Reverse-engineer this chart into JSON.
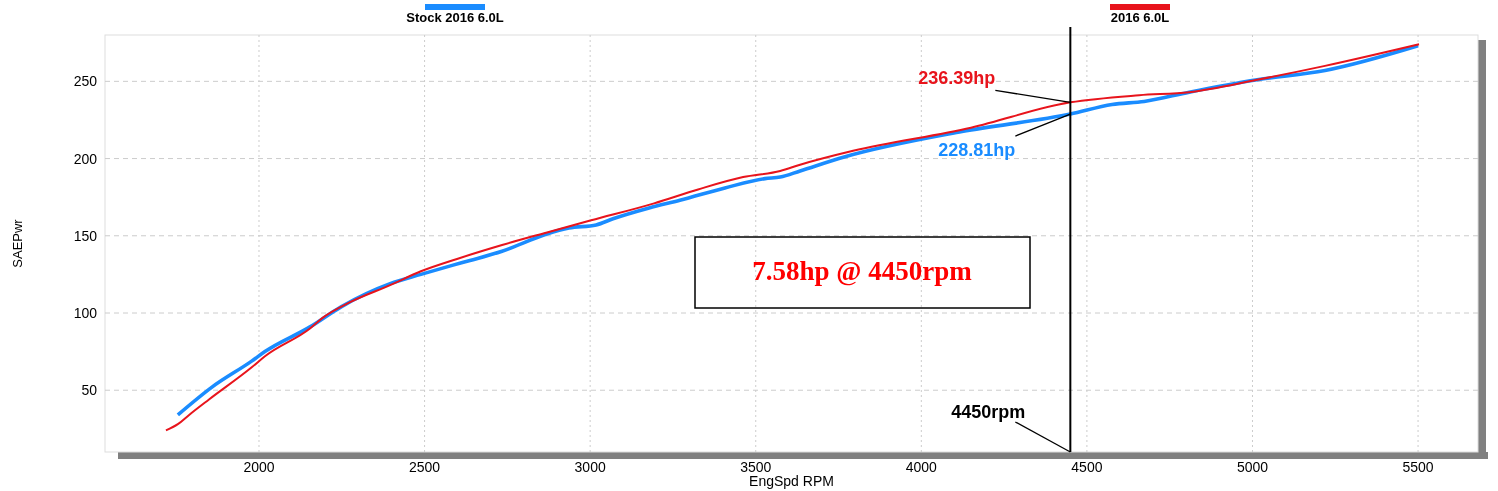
{
  "chart_data": {
    "type": "line",
    "xlabel": "EngSpd RPM",
    "ylabel": "SAEPwr",
    "xlim": [
      1535,
      5681
    ],
    "ylim": [
      10,
      280
    ],
    "xticks": [
      2000,
      2500,
      3000,
      3500,
      4000,
      4500,
      5000,
      5500
    ],
    "yticks": [
      50,
      100,
      150,
      200,
      250
    ],
    "grid": true,
    "legend": "top",
    "marker": "none",
    "line_style": "solid",
    "series": [
      {
        "name": "Stock 2016 6.0L",
        "color": "#1a8cff",
        "x": [
          1755,
          1858,
          1979,
          2018,
          2154,
          2248,
          2396,
          2489,
          2586,
          2637,
          2734,
          2867,
          2936,
          3018,
          3069,
          3178,
          3271,
          3407,
          3528,
          3574,
          3634,
          3767,
          4123,
          4450,
          4576,
          4673,
          4809,
          5014,
          5219,
          5500
        ],
        "values": [
          34,
          52,
          69,
          75,
          91,
          104,
          119,
          125,
          131,
          134,
          140,
          151,
          155,
          157,
          161,
          168,
          173,
          181,
          187,
          188,
          192,
          201,
          217.5,
          228.81,
          235,
          237,
          243,
          251,
          257,
          273
        ]
      },
      {
        "name": "2016 6.0L",
        "color": "#e8141c",
        "x": [
          1719,
          1755,
          1789,
          1849,
          1979,
          2018,
          2154,
          2193,
          2275,
          2396,
          2489,
          2598,
          2734,
          2867,
          3003,
          3193,
          3326,
          3462,
          3574,
          3634,
          3794,
          4150,
          4450,
          4658,
          4809,
          5014,
          5219,
          5503
        ],
        "values": [
          24,
          28,
          34,
          44,
          65,
          72,
          90,
          97,
          107,
          118,
          127,
          135,
          144,
          152,
          160,
          171,
          180,
          188,
          192,
          196,
          205,
          220,
          236.39,
          241,
          243,
          251,
          260,
          274
        ]
      }
    ],
    "ref_lines": [
      {
        "axis": "x",
        "value": 4450,
        "label": "4450rpm",
        "color": "#000000"
      }
    ],
    "annotations": [
      {
        "text": "236.39hp",
        "x": 4450,
        "y": 236.39
      },
      {
        "text": "228.81hp",
        "x": 4450,
        "y": 228.81
      },
      "7.58hp @ 4450rpm"
    ]
  }
}
